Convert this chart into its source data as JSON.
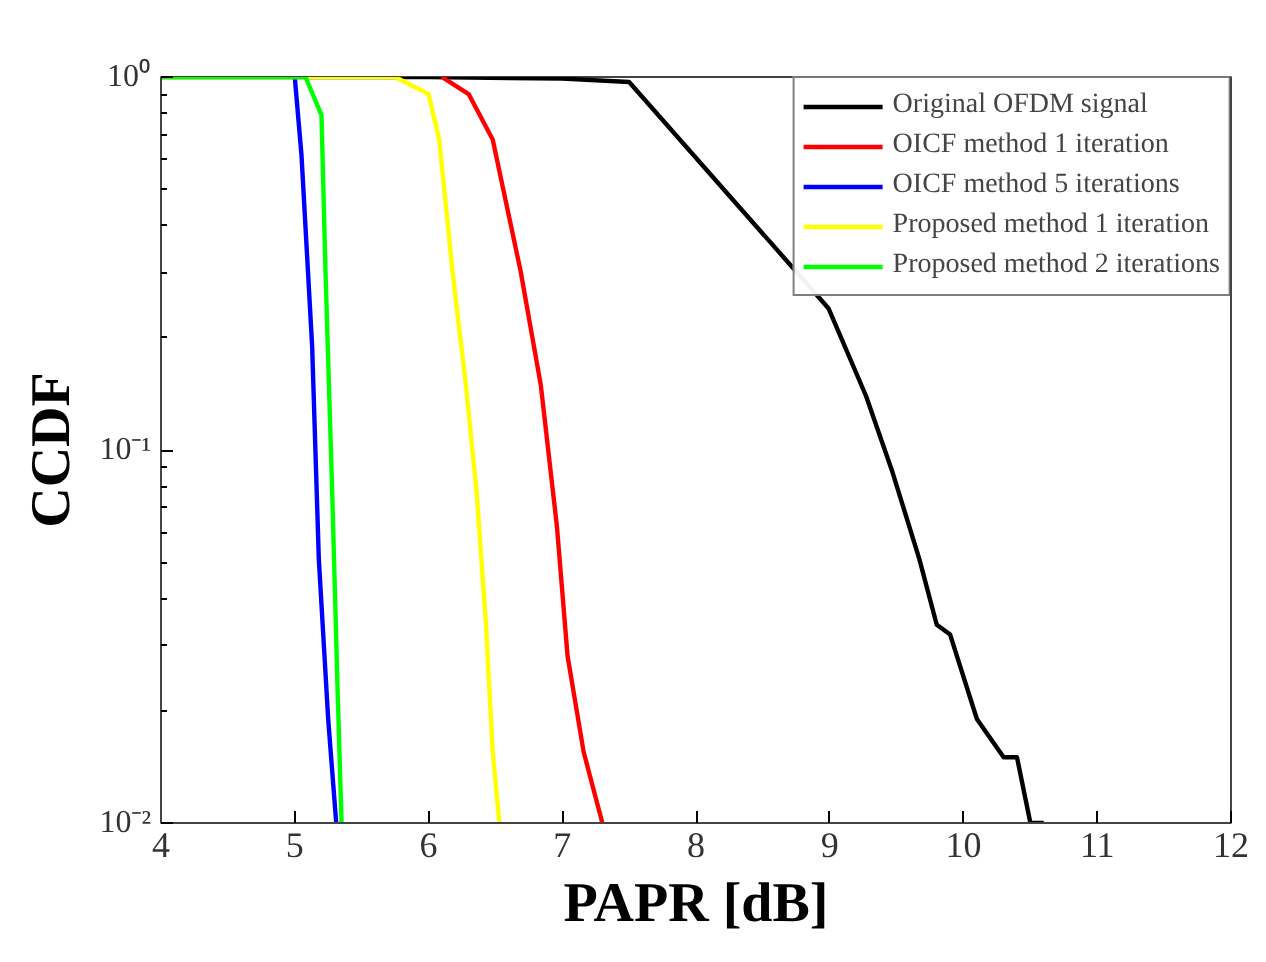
{
  "chart_data": {
    "type": "line",
    "xlabel": "PAPR [dB]",
    "ylabel": "CCDF",
    "log": "y",
    "xlim": [
      4,
      12
    ],
    "xticks": [
      4,
      5,
      6,
      7,
      8,
      9,
      10,
      11,
      12
    ],
    "ylim": [
      0.01,
      1
    ],
    "yticks": [
      {
        "value": 0.01,
        "label": "10⁻²"
      },
      {
        "value": 0.1,
        "label": "10⁻¹"
      },
      {
        "value": 1,
        "label": "10⁰"
      }
    ],
    "grid": false,
    "legend": "top right",
    "line_style": "solid",
    "series": [
      {
        "name": "Original OFDM signal",
        "color": "#000000",
        "x": [
          4,
          6.0,
          7.0,
          7.5,
          8.99,
          9.27,
          9.47,
          9.67,
          9.8,
          9.9,
          10.1,
          10.3,
          10.4,
          10.5,
          10.6
        ],
        "values": [
          1,
          1,
          0.99,
          0.97,
          0.24,
          0.14,
          0.087,
          0.051,
          0.034,
          0.032,
          0.019,
          0.015,
          0.015,
          0.01,
          0.01
        ]
      },
      {
        "name": "OICF method 1 iteration",
        "color": "#ff0000",
        "x": [
          6.1,
          6.3,
          6.48,
          6.69,
          6.84,
          6.96,
          7.04,
          7.16,
          7.3
        ],
        "values": [
          1,
          0.9,
          0.68,
          0.3,
          0.149,
          0.0625,
          0.028,
          0.0155,
          0.01
        ]
      },
      {
        "name": "OICF method 5 iterations",
        "color": "#0000ff",
        "x": [
          5.0,
          5.05,
          5.13,
          5.18,
          5.25,
          5.31
        ],
        "values": [
          1,
          0.62,
          0.19,
          0.051,
          0.019,
          0.01
        ]
      },
      {
        "name": "Proposed method 1 iteration",
        "color": "#ffff00",
        "x": [
          4,
          5.75,
          6.0,
          6.08,
          6.18,
          6.28,
          6.36,
          6.43,
          6.48,
          6.53
        ],
        "values": [
          1,
          1,
          0.9,
          0.68,
          0.3,
          0.149,
          0.077,
          0.034,
          0.0155,
          0.01
        ]
      },
      {
        "name": "Proposed method 2 iterations",
        "color": "#00ff00",
        "x": [
          4,
          5.08,
          5.2,
          5.23,
          5.28,
          5.32,
          5.35
        ],
        "values": [
          1,
          1,
          0.79,
          0.3,
          0.077,
          0.023,
          0.01
        ]
      }
    ]
  }
}
